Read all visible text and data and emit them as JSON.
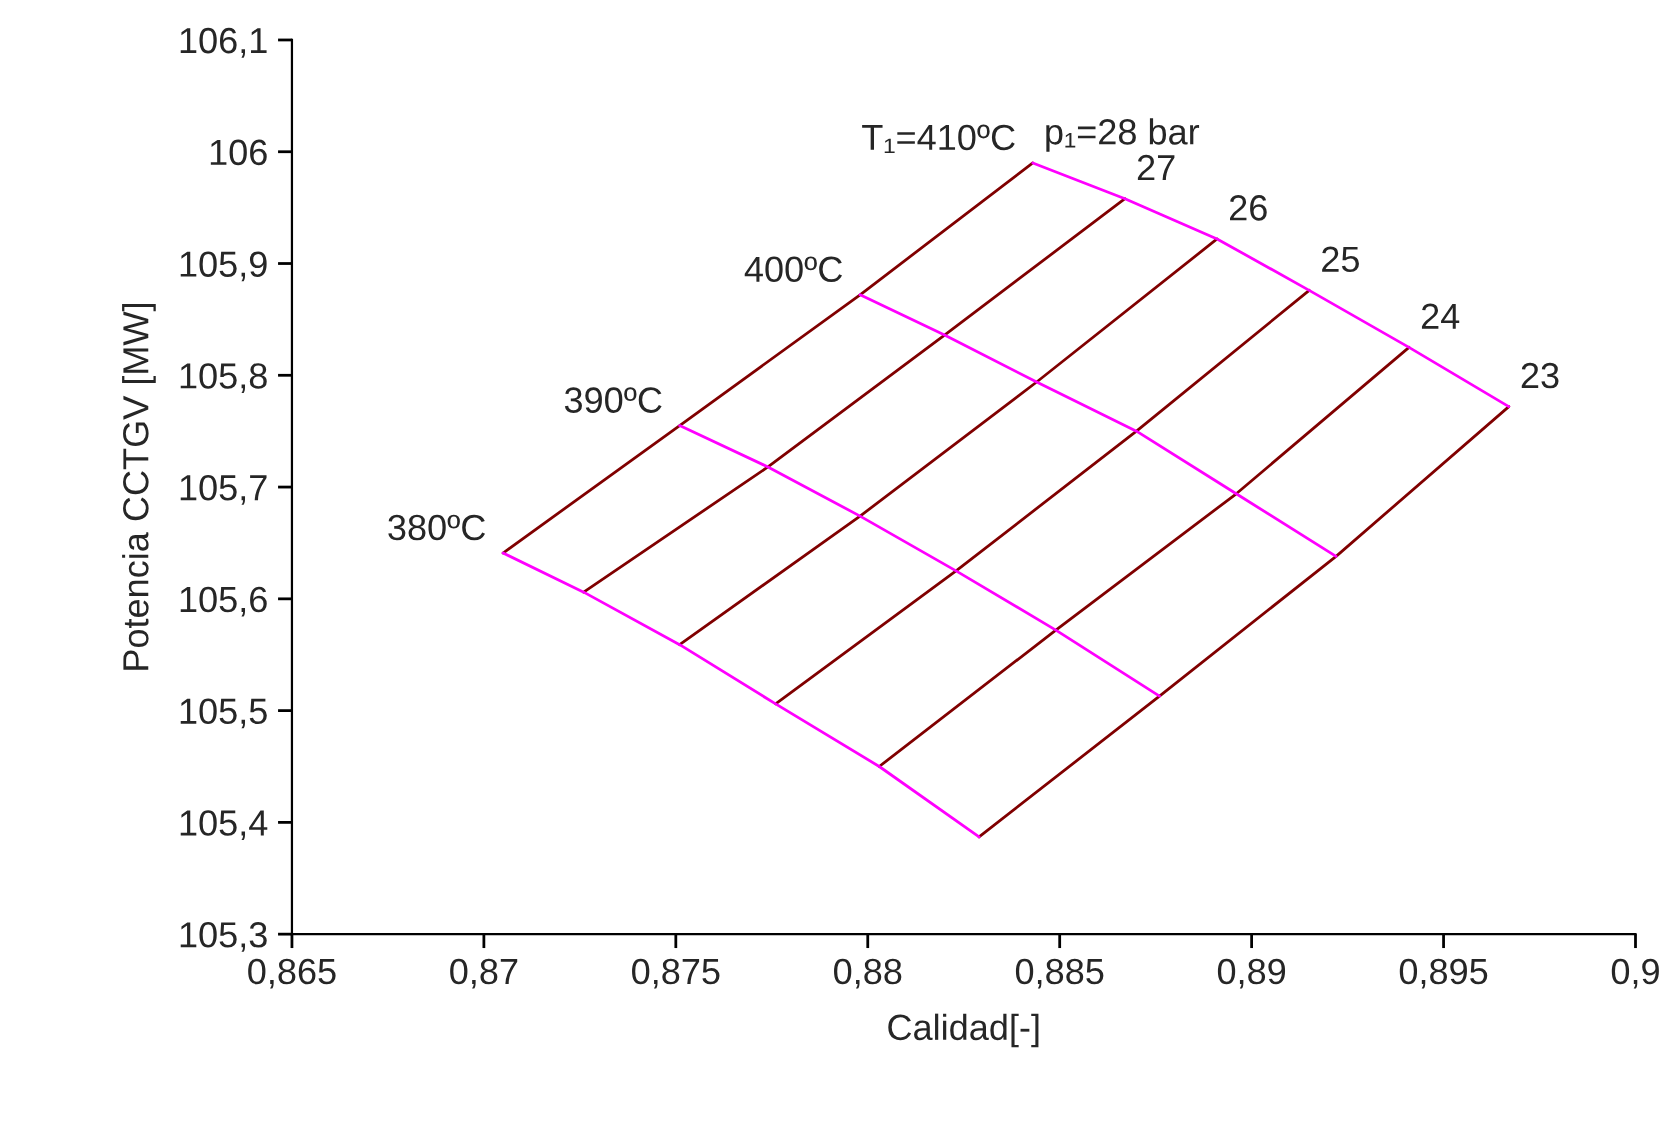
{
  "chart_data": {
    "type": "line",
    "xlabel": "Calidad[-]",
    "ylabel": "Potencia CCTGV [MW]",
    "xlim": [
      0.865,
      0.9
    ],
    "ylim": [
      105.3,
      106.1
    ],
    "xticks": [
      {
        "value": 0.865,
        "label": "0,865"
      },
      {
        "value": 0.87,
        "label": "0,87"
      },
      {
        "value": 0.875,
        "label": "0,875"
      },
      {
        "value": 0.88,
        "label": "0,88"
      },
      {
        "value": 0.885,
        "label": "0,885"
      },
      {
        "value": 0.89,
        "label": "0,89"
      },
      {
        "value": 0.895,
        "label": "0,895"
      },
      {
        "value": 0.9,
        "label": "0,9"
      }
    ],
    "yticks": [
      {
        "value": 105.3,
        "label": "105,3"
      },
      {
        "value": 105.4,
        "label": "105,4"
      },
      {
        "value": 105.5,
        "label": "105,5"
      },
      {
        "value": 105.6,
        "label": "105,6"
      },
      {
        "value": 105.7,
        "label": "105,7"
      },
      {
        "value": 105.8,
        "label": "105,8"
      },
      {
        "value": 105.9,
        "label": "105,9"
      },
      {
        "value": 106,
        "label": "106"
      },
      {
        "value": 106.1,
        "label": "106,1"
      }
    ],
    "grid": false,
    "legend": false,
    "marker": "none",
    "line_style": "solid",
    "series": [
      {
        "color": "#800000",
        "x": [
          0.8705,
          0.8751,
          0.8798,
          0.8843
        ],
        "values": [
          105.641,
          105.755,
          105.872,
          105.99
        ]
      },
      {
        "color": "#800000",
        "x": [
          0.8726,
          0.8774,
          0.882,
          0.8867
        ],
        "values": [
          105.606,
          105.718,
          105.836,
          105.958
        ]
      },
      {
        "color": "#800000",
        "x": [
          0.8751,
          0.8798,
          0.8844,
          0.8891
        ],
        "values": [
          105.559,
          105.674,
          105.794,
          105.922
        ]
      },
      {
        "color": "#800000",
        "x": [
          0.8776,
          0.8823,
          0.887,
          0.8915
        ],
        "values": [
          105.506,
          105.625,
          105.75,
          105.876
        ]
      },
      {
        "color": "#800000",
        "x": [
          0.8803,
          0.8849,
          0.8896,
          0.8941
        ],
        "values": [
          105.45,
          105.572,
          105.694,
          105.825
        ]
      },
      {
        "color": "#800000",
        "x": [
          0.8829,
          0.8876,
          0.8922,
          0.8967
        ],
        "values": [
          105.387,
          105.513,
          105.638,
          105.772
        ]
      },
      {
        "color": "#ff00ff",
        "x": [
          0.8843,
          0.8867,
          0.8891,
          0.8915,
          0.8941,
          0.8967
        ],
        "values": [
          105.99,
          105.958,
          105.922,
          105.876,
          105.825,
          105.772
        ]
      },
      {
        "color": "#ff00ff",
        "x": [
          0.8798,
          0.882,
          0.8844,
          0.887,
          0.8896,
          0.8922
        ],
        "values": [
          105.872,
          105.836,
          105.794,
          105.75,
          105.694,
          105.638
        ]
      },
      {
        "color": "#ff00ff",
        "x": [
          0.8751,
          0.8774,
          0.8798,
          0.8823,
          0.8849,
          0.8876
        ],
        "values": [
          105.755,
          105.718,
          105.674,
          105.625,
          105.572,
          105.513
        ]
      },
      {
        "color": "#ff00ff",
        "x": [
          0.8705,
          0.8726,
          0.8751,
          0.8776,
          0.8803,
          0.8829
        ],
        "values": [
          105.641,
          105.606,
          105.559,
          105.506,
          105.45,
          105.387
        ]
      }
    ],
    "annotations": [
      {
        "text": "T₁=410ºC",
        "x": 0.8843,
        "y": 105.99
      },
      {
        "text": "400ºC",
        "x": 0.8798,
        "y": 105.872
      },
      {
        "text": "390ºC",
        "x": 0.8751,
        "y": 105.755
      },
      {
        "text": "380ºC",
        "x": 0.8705,
        "y": 105.641
      },
      {
        "text": "p₁=28 bar",
        "x": 0.8843,
        "y": 105.99
      },
      {
        "text": "27",
        "x": 0.8867,
        "y": 105.958
      },
      {
        "text": "26",
        "x": 0.8891,
        "y": 105.922
      },
      {
        "text": "25",
        "x": 0.8915,
        "y": 105.876
      },
      {
        "text": "24",
        "x": 0.8941,
        "y": 105.825
      },
      {
        "text": "23",
        "x": 0.8967,
        "y": 105.772
      }
    ]
  }
}
